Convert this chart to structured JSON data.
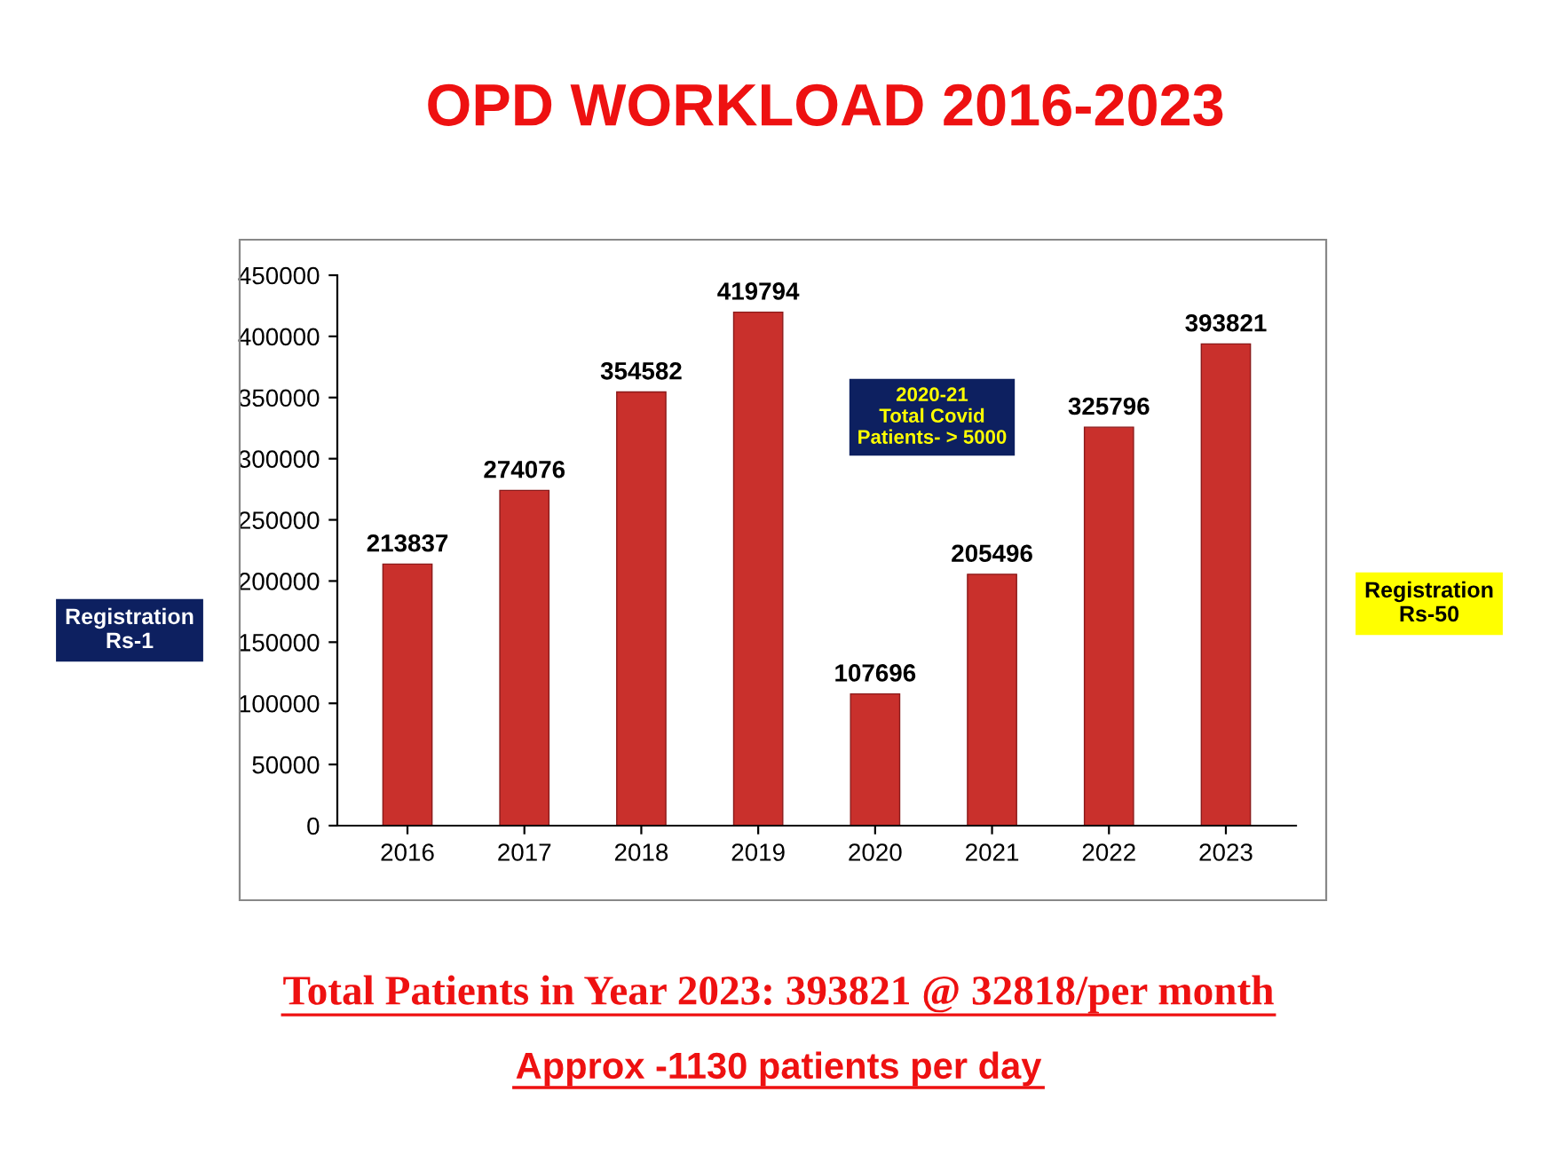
{
  "chart_data": {
    "type": "bar",
    "title": "OPD WORKLOAD 2016-2023",
    "categories": [
      "2016",
      "2017",
      "2018",
      "2019",
      "2020",
      "2021",
      "2022",
      "2023"
    ],
    "values": [
      213837,
      274076,
      354582,
      419794,
      107696,
      205496,
      325796,
      393821
    ],
    "color": "#c9302c",
    "ylim": [
      0,
      450000
    ],
    "yticks": [
      0,
      50000,
      100000,
      150000,
      200000,
      250000,
      300000,
      350000,
      400000,
      450000
    ],
    "grid": false,
    "data_labels": true,
    "annotations": [
      "Registration\nRs-1",
      "Registration\nRs-50",
      "2020-21\nTotal Covid\nPatients- > 5000",
      "Total Patients in Year 2023: 393821 @ 32818/per month",
      "Approx -1130 patients per day"
    ]
  }
}
